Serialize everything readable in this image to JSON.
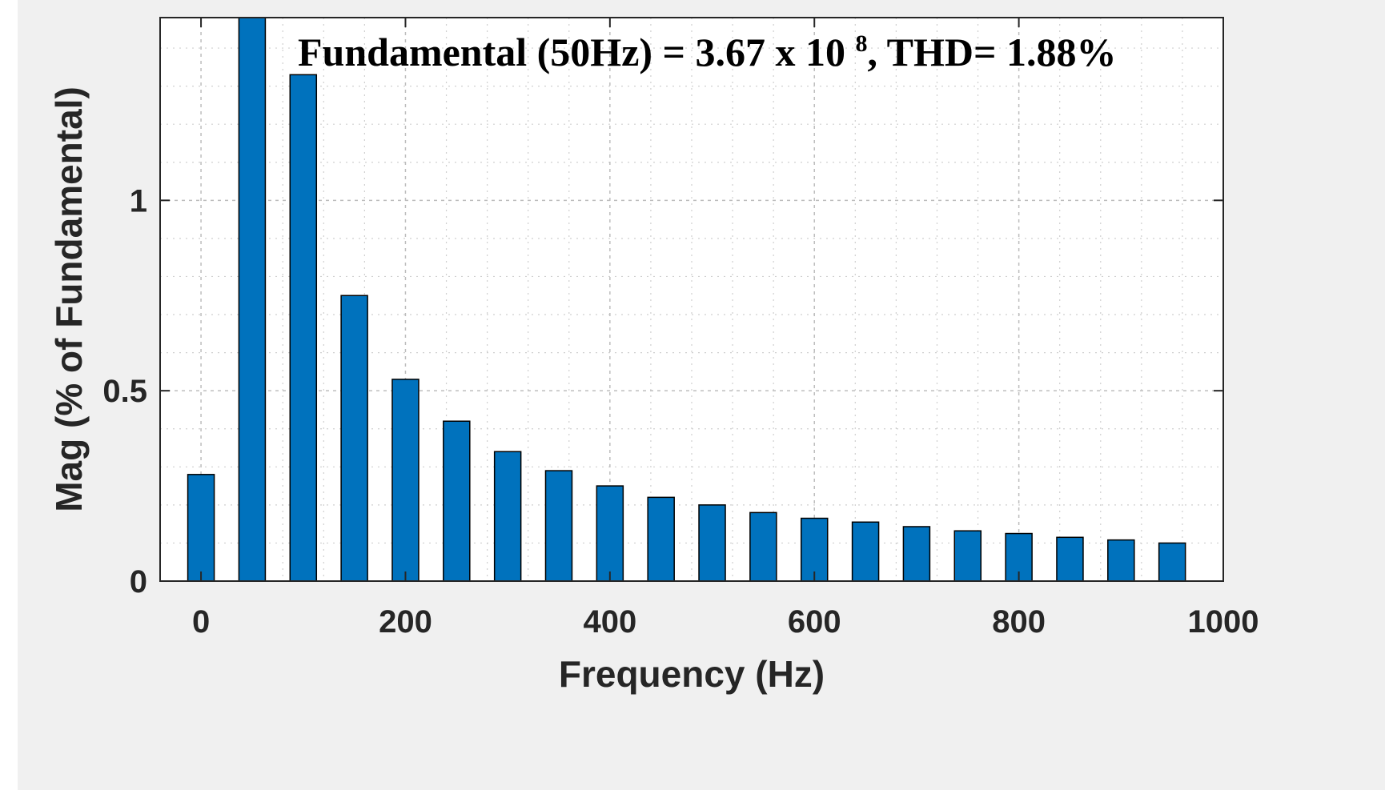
{
  "chart_data": {
    "type": "bar",
    "title": "",
    "annotation": {
      "prefix": "Fundamental (50Hz) = 3.67 x 10 ",
      "exponent": "8",
      "suffix": ", THD= 1.88%"
    },
    "xlabel": "Frequency (Hz)",
    "ylabel": "Mag (% of Fundamental)",
    "xlim": [
      -40,
      1000
    ],
    "ylim": [
      0,
      1.48
    ],
    "xticks": [
      0,
      200,
      400,
      600,
      800,
      1000
    ],
    "yticks": [
      0,
      0.5,
      1
    ],
    "xtick_labels": [
      "0",
      "200",
      "400",
      "600",
      "800",
      "1000"
    ],
    "ytick_labels": [
      "0",
      "0.5",
      "1"
    ],
    "grid": true,
    "minor_grid": true,
    "bar_color": "#0072bd",
    "x": [
      0,
      50,
      100,
      150,
      200,
      250,
      300,
      350,
      400,
      450,
      500,
      550,
      600,
      650,
      700,
      750,
      800,
      850,
      900,
      950
    ],
    "values": [
      0.28,
      1.48,
      1.33,
      0.75,
      0.53,
      0.42,
      0.34,
      0.29,
      0.25,
      0.22,
      0.2,
      0.18,
      0.165,
      0.155,
      0.143,
      0.132,
      0.125,
      0.115,
      0.108,
      0.1
    ]
  }
}
